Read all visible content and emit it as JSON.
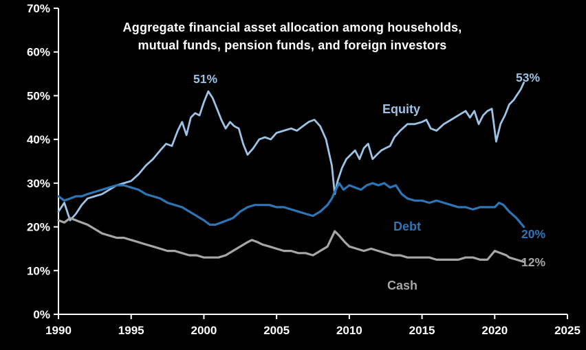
{
  "chart": {
    "title_line1": "Aggregate financial asset allocation among households,",
    "title_line2": "mutual funds, pension funds, and foreign investors",
    "annotations": {
      "equity_peak_label": "51%",
      "equity_end_label": "53%",
      "equity_series_label": "Equity",
      "debt_series_label": "Debt",
      "debt_end_label": "20%",
      "cash_series_label": "Cash",
      "cash_end_label": "12%"
    },
    "colors": {
      "background": "#000000",
      "axis": "#ffffff",
      "text": "#ffffff",
      "equity": "#9dc3e6",
      "debt": "#2e75b6",
      "cash": "#a6a6a6"
    }
  },
  "chart_data": {
    "type": "line",
    "title": "Aggregate financial asset allocation among households, mutual funds, pension funds, and foreign investors",
    "xlabel": "",
    "ylabel": "",
    "xlim": [
      1990,
      2025
    ],
    "ylim": [
      0,
      70
    ],
    "grid": false,
    "legend_position": "inline-annotations",
    "x_ticks": [
      {
        "value": 1990,
        "label": "1990"
      },
      {
        "value": 1995,
        "label": "1995"
      },
      {
        "value": 2000,
        "label": "2000"
      },
      {
        "value": 2005,
        "label": "2005"
      },
      {
        "value": 2010,
        "label": "2010"
      },
      {
        "value": 2015,
        "label": "2015"
      },
      {
        "value": 2020,
        "label": "2020"
      },
      {
        "value": 2025,
        "label": "2025"
      }
    ],
    "y_ticks": [
      {
        "value": 0,
        "label": "0%"
      },
      {
        "value": 10,
        "label": "10%"
      },
      {
        "value": 20,
        "label": "20%"
      },
      {
        "value": 30,
        "label": "30%"
      },
      {
        "value": 40,
        "label": "40%"
      },
      {
        "value": 50,
        "label": "50%"
      },
      {
        "value": 60,
        "label": "60%"
      },
      {
        "value": 70,
        "label": "70%"
      }
    ],
    "series": [
      {
        "name": "Equity",
        "color_key": "equity",
        "width": 2.8,
        "points": [
          [
            1990,
            23.5
          ],
          [
            1990.4,
            25.5
          ],
          [
            1990.8,
            21.5
          ],
          [
            1991.2,
            23
          ],
          [
            1991.6,
            25
          ],
          [
            1992,
            26.5
          ],
          [
            1992.5,
            27
          ],
          [
            1993,
            27.5
          ],
          [
            1993.5,
            28.5
          ],
          [
            1994,
            29.5
          ],
          [
            1994.5,
            30
          ],
          [
            1995,
            30.5
          ],
          [
            1995.5,
            32
          ],
          [
            1996,
            34
          ],
          [
            1996.5,
            35.5
          ],
          [
            1997,
            37.5
          ],
          [
            1997.4,
            39
          ],
          [
            1997.8,
            38.5
          ],
          [
            1998.2,
            42
          ],
          [
            1998.5,
            44
          ],
          [
            1998.8,
            41
          ],
          [
            1999.1,
            45
          ],
          [
            1999.4,
            46
          ],
          [
            1999.7,
            45.5
          ],
          [
            2000,
            48.5
          ],
          [
            2000.3,
            51
          ],
          [
            2000.6,
            49.5
          ],
          [
            2000.9,
            47
          ],
          [
            2001.2,
            44.5
          ],
          [
            2001.5,
            42.5
          ],
          [
            2001.8,
            44
          ],
          [
            2002.1,
            43
          ],
          [
            2002.4,
            42.5
          ],
          [
            2002.7,
            39
          ],
          [
            2003,
            36.5
          ],
          [
            2003.4,
            38
          ],
          [
            2003.8,
            40
          ],
          [
            2004.2,
            40.5
          ],
          [
            2004.6,
            40
          ],
          [
            2005,
            41.5
          ],
          [
            2005.5,
            42
          ],
          [
            2006,
            42.5
          ],
          [
            2006.4,
            42
          ],
          [
            2006.8,
            43
          ],
          [
            2007.2,
            44
          ],
          [
            2007.6,
            44.5
          ],
          [
            2008,
            43
          ],
          [
            2008.4,
            40
          ],
          [
            2008.8,
            34
          ],
          [
            2009,
            27.5
          ],
          [
            2009.2,
            30.5
          ],
          [
            2009.5,
            33.5
          ],
          [
            2009.8,
            35.5
          ],
          [
            2010.1,
            36.5
          ],
          [
            2010.4,
            37.5
          ],
          [
            2010.7,
            35.5
          ],
          [
            2011,
            38
          ],
          [
            2011.3,
            39
          ],
          [
            2011.6,
            35.5
          ],
          [
            2011.9,
            36.5
          ],
          [
            2012.2,
            37.5
          ],
          [
            2012.5,
            38
          ],
          [
            2012.8,
            38.5
          ],
          [
            2013.1,
            40.5
          ],
          [
            2013.5,
            42
          ],
          [
            2014,
            43.5
          ],
          [
            2014.5,
            43.5
          ],
          [
            2015,
            44
          ],
          [
            2015.3,
            44.5
          ],
          [
            2015.6,
            42.5
          ],
          [
            2016,
            42
          ],
          [
            2016.5,
            43.5
          ],
          [
            2017,
            44.5
          ],
          [
            2017.5,
            45.5
          ],
          [
            2018,
            46.5
          ],
          [
            2018.3,
            45
          ],
          [
            2018.6,
            46.5
          ],
          [
            2018.9,
            43.5
          ],
          [
            2019.2,
            45.5
          ],
          [
            2019.5,
            46.5
          ],
          [
            2019.8,
            47
          ],
          [
            2020.1,
            39.5
          ],
          [
            2020.4,
            43.5
          ],
          [
            2020.7,
            45.5
          ],
          [
            2021,
            48
          ],
          [
            2021.3,
            49
          ],
          [
            2021.6,
            50.5
          ],
          [
            2021.8,
            51.5
          ],
          [
            2022,
            53
          ]
        ]
      },
      {
        "name": "Debt",
        "color_key": "debt",
        "width": 3.2,
        "points": [
          [
            1990,
            27
          ],
          [
            1990.4,
            26
          ],
          [
            1990.8,
            26.5
          ],
          [
            1991.2,
            27
          ],
          [
            1991.6,
            27
          ],
          [
            1992,
            27.5
          ],
          [
            1992.5,
            28
          ],
          [
            1993,
            28.5
          ],
          [
            1993.5,
            29
          ],
          [
            1994,
            29.5
          ],
          [
            1994.5,
            29.5
          ],
          [
            1995,
            29
          ],
          [
            1995.5,
            28.5
          ],
          [
            1996,
            27.5
          ],
          [
            1996.5,
            27
          ],
          [
            1997,
            26.5
          ],
          [
            1997.5,
            25.5
          ],
          [
            1998,
            25
          ],
          [
            1998.5,
            24.5
          ],
          [
            1999,
            23.5
          ],
          [
            1999.5,
            22.5
          ],
          [
            2000,
            21.5
          ],
          [
            2000.4,
            20.5
          ],
          [
            2000.8,
            20.5
          ],
          [
            2001.2,
            21
          ],
          [
            2001.6,
            21.5
          ],
          [
            2002,
            22
          ],
          [
            2002.5,
            23.5
          ],
          [
            2003,
            24.5
          ],
          [
            2003.5,
            25
          ],
          [
            2004,
            25
          ],
          [
            2004.5,
            25
          ],
          [
            2005,
            24.5
          ],
          [
            2005.5,
            24.5
          ],
          [
            2006,
            24
          ],
          [
            2006.5,
            23.5
          ],
          [
            2007,
            23
          ],
          [
            2007.5,
            22.5
          ],
          [
            2008,
            23.5
          ],
          [
            2008.5,
            25
          ],
          [
            2008.8,
            26.5
          ],
          [
            2009,
            28
          ],
          [
            2009.3,
            30
          ],
          [
            2009.6,
            28.5
          ],
          [
            2010,
            29.5
          ],
          [
            2010.4,
            29
          ],
          [
            2010.8,
            28.5
          ],
          [
            2011.2,
            29.5
          ],
          [
            2011.6,
            30
          ],
          [
            2012,
            29.5
          ],
          [
            2012.4,
            30
          ],
          [
            2012.8,
            29
          ],
          [
            2013.2,
            29.5
          ],
          [
            2013.6,
            27.5
          ],
          [
            2014,
            26.5
          ],
          [
            2014.5,
            26
          ],
          [
            2015,
            26
          ],
          [
            2015.5,
            25.5
          ],
          [
            2016,
            26
          ],
          [
            2016.5,
            25.5
          ],
          [
            2017,
            25
          ],
          [
            2017.5,
            24.5
          ],
          [
            2018,
            24.5
          ],
          [
            2018.5,
            24
          ],
          [
            2019,
            24.5
          ],
          [
            2019.5,
            24.5
          ],
          [
            2020,
            24.5
          ],
          [
            2020.3,
            25.5
          ],
          [
            2020.6,
            25
          ],
          [
            2021,
            23.5
          ],
          [
            2021.5,
            22
          ],
          [
            2022,
            20
          ]
        ]
      },
      {
        "name": "Cash",
        "color_key": "cash",
        "width": 3.2,
        "points": [
          [
            1990,
            21.5
          ],
          [
            1990.4,
            21
          ],
          [
            1990.8,
            22
          ],
          [
            1991.2,
            21.5
          ],
          [
            1991.6,
            21
          ],
          [
            1992,
            20.5
          ],
          [
            1992.5,
            19.5
          ],
          [
            1993,
            18.5
          ],
          [
            1993.5,
            18
          ],
          [
            1994,
            17.5
          ],
          [
            1994.5,
            17.5
          ],
          [
            1995,
            17
          ],
          [
            1995.5,
            16.5
          ],
          [
            1996,
            16
          ],
          [
            1996.5,
            15.5
          ],
          [
            1997,
            15
          ],
          [
            1997.5,
            14.5
          ],
          [
            1998,
            14.5
          ],
          [
            1998.5,
            14
          ],
          [
            1999,
            13.5
          ],
          [
            1999.5,
            13.5
          ],
          [
            2000,
            13
          ],
          [
            2000.5,
            13
          ],
          [
            2001,
            13
          ],
          [
            2001.5,
            13.5
          ],
          [
            2002,
            14.5
          ],
          [
            2002.5,
            15.5
          ],
          [
            2003,
            16.5
          ],
          [
            2003.3,
            17
          ],
          [
            2003.7,
            16.5
          ],
          [
            2004,
            16
          ],
          [
            2004.5,
            15.5
          ],
          [
            2005,
            15
          ],
          [
            2005.5,
            14.5
          ],
          [
            2006,
            14.5
          ],
          [
            2006.5,
            14
          ],
          [
            2007,
            14
          ],
          [
            2007.5,
            13.5
          ],
          [
            2008,
            14.5
          ],
          [
            2008.5,
            15.5
          ],
          [
            2009,
            19
          ],
          [
            2009.3,
            18
          ],
          [
            2009.7,
            16.5
          ],
          [
            2010,
            15.5
          ],
          [
            2010.5,
            15
          ],
          [
            2011,
            14.5
          ],
          [
            2011.5,
            15
          ],
          [
            2012,
            14.5
          ],
          [
            2012.5,
            14
          ],
          [
            2013,
            13.5
          ],
          [
            2013.5,
            13.5
          ],
          [
            2014,
            13
          ],
          [
            2014.5,
            13
          ],
          [
            2015,
            13
          ],
          [
            2015.5,
            13
          ],
          [
            2016,
            12.5
          ],
          [
            2016.5,
            12.5
          ],
          [
            2017,
            12.5
          ],
          [
            2017.5,
            12.5
          ],
          [
            2018,
            13
          ],
          [
            2018.5,
            13
          ],
          [
            2019,
            12.5
          ],
          [
            2019.5,
            12.5
          ],
          [
            2020,
            14.5
          ],
          [
            2020.4,
            14
          ],
          [
            2020.8,
            13.5
          ],
          [
            2021,
            13
          ],
          [
            2021.5,
            12.5
          ],
          [
            2022,
            12
          ]
        ]
      }
    ]
  }
}
